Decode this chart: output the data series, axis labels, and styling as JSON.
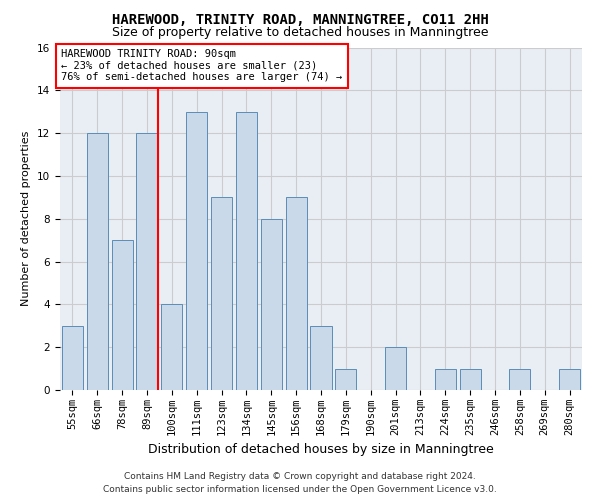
{
  "title": "HAREWOOD, TRINITY ROAD, MANNINGTREE, CO11 2HH",
  "subtitle": "Size of property relative to detached houses in Manningtree",
  "xlabel": "Distribution of detached houses by size in Manningtree",
  "ylabel": "Number of detached properties",
  "categories": [
    "55sqm",
    "66sqm",
    "78sqm",
    "89sqm",
    "100sqm",
    "111sqm",
    "123sqm",
    "134sqm",
    "145sqm",
    "156sqm",
    "168sqm",
    "179sqm",
    "190sqm",
    "201sqm",
    "213sqm",
    "224sqm",
    "235sqm",
    "246sqm",
    "258sqm",
    "269sqm",
    "280sqm"
  ],
  "values": [
    3,
    12,
    7,
    12,
    4,
    13,
    9,
    13,
    8,
    9,
    3,
    1,
    0,
    2,
    0,
    1,
    1,
    0,
    1,
    0,
    1
  ],
  "bar_color": "#c9d9ea",
  "bar_edgecolor": "#5b8db8",
  "red_line_index": 3,
  "annotation_line1": "HAREWOOD TRINITY ROAD: 90sqm",
  "annotation_line2": "← 23% of detached houses are smaller (23)",
  "annotation_line3": "76% of semi-detached houses are larger (74) →",
  "annotation_box_color": "white",
  "annotation_box_edgecolor": "red",
  "ylim": [
    0,
    16
  ],
  "yticks": [
    0,
    2,
    4,
    6,
    8,
    10,
    12,
    14,
    16
  ],
  "grid_color": "#cccccc",
  "background_color": "#e8eef4",
  "footnote1": "Contains HM Land Registry data © Crown copyright and database right 2024.",
  "footnote2": "Contains public sector information licensed under the Open Government Licence v3.0.",
  "title_fontsize": 10,
  "subtitle_fontsize": 9,
  "xlabel_fontsize": 9,
  "ylabel_fontsize": 8,
  "tick_fontsize": 7.5,
  "annotation_fontsize": 7.5,
  "footnote_fontsize": 6.5
}
